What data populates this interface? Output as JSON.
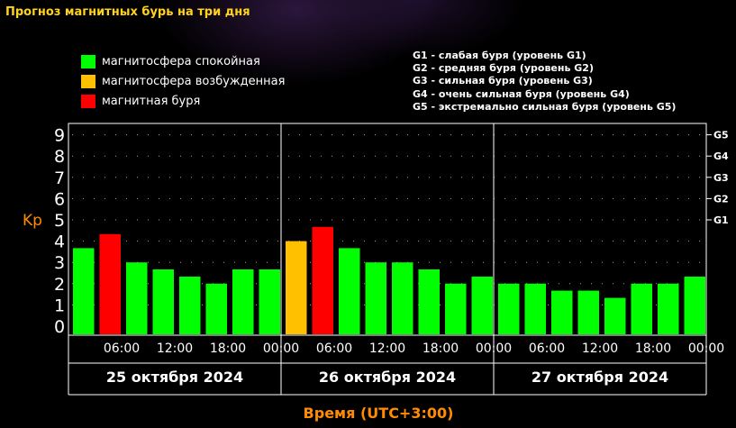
{
  "title": "Прогноз магнитных бурь на три дня",
  "legend": [
    {
      "label": "магнитосфера спокойная",
      "color": "#00ff00"
    },
    {
      "label": "магнитосфера возбужденная",
      "color": "#ffc000"
    },
    {
      "label": "магнитная буря",
      "color": "#ff0000"
    }
  ],
  "storm_levels": [
    "G1 - слабая буря (уровень G1)",
    "G2 - средняя буря (уровень G2)",
    "G3 - сильная буря (уровень G3)",
    "G4 - очень сильная буря (уровень G4)",
    "G5 - экстремально сильная буря (уровень G5)"
  ],
  "chart_data": {
    "type": "bar",
    "ylabel": "Kp",
    "xlabel": "Время (UTC+3:00)",
    "ylim": [
      0,
      9
    ],
    "y_ticks": [
      "0",
      "1",
      "2",
      "3",
      "4",
      "5",
      "6",
      "7",
      "8",
      "9"
    ],
    "right_ticks": [
      {
        "label": "G1",
        "kp": 5
      },
      {
        "label": "G2",
        "kp": 6
      },
      {
        "label": "G3",
        "kp": 7
      },
      {
        "label": "G4",
        "kp": 8
      },
      {
        "label": "G5",
        "kp": 9
      }
    ],
    "x_ticks": [
      "06:00",
      "12:00",
      "18:00",
      "00:00",
      "06:00",
      "12:00",
      "18:00",
      "00:00",
      "06:00",
      "12:00",
      "18:00",
      "00:00"
    ],
    "days": [
      "25 октября 2024",
      "26 октября 2024",
      "27 октября 2024"
    ],
    "status_colors": {
      "quiet": "#00ff00",
      "active": "#ffc000",
      "storm": "#ff0000"
    },
    "values": [
      3.67,
      4.33,
      3.0,
      2.67,
      2.33,
      2.0,
      2.67,
      2.67,
      4.0,
      4.67,
      3.67,
      3.0,
      3.0,
      2.67,
      2.0,
      2.33,
      2.0,
      2.0,
      1.67,
      1.67,
      1.33,
      2.0,
      2.0,
      2.33
    ],
    "status": [
      "quiet",
      "storm",
      "quiet",
      "quiet",
      "quiet",
      "quiet",
      "quiet",
      "quiet",
      "active",
      "storm",
      "quiet",
      "quiet",
      "quiet",
      "quiet",
      "quiet",
      "quiet",
      "quiet",
      "quiet",
      "quiet",
      "quiet",
      "quiet",
      "quiet",
      "quiet",
      "quiet"
    ],
    "grid": true
  }
}
